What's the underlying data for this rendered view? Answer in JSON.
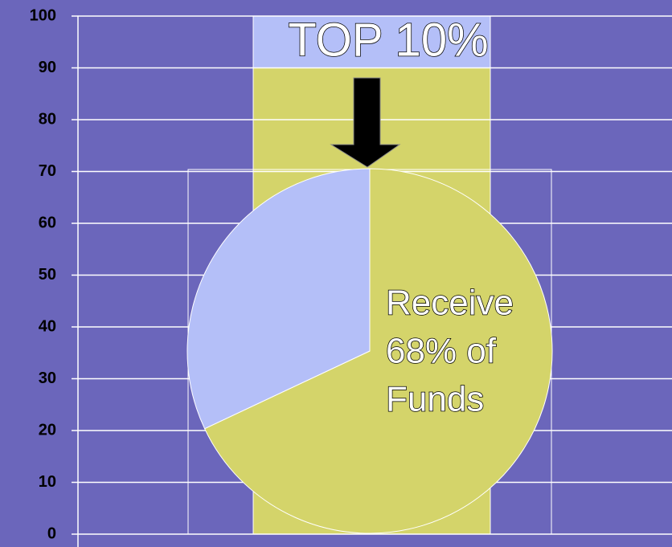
{
  "chart_data": [
    {
      "type": "bar",
      "stacked": true,
      "categories": [
        null
      ],
      "ylim": [
        0,
        100
      ],
      "yticks": [
        0,
        10,
        20,
        30,
        40,
        50,
        60,
        70,
        80,
        90,
        100
      ],
      "grid": true,
      "series": [
        {
          "color": "#d4d46a",
          "values": [
            90
          ]
        },
        {
          "color": "#b4bff8",
          "values": [
            10
          ]
        }
      ],
      "annotation": "TOP 10%"
    },
    {
      "type": "pie",
      "values": [
        68,
        32
      ],
      "colors": [
        "#d4d46a",
        "#b4bff8"
      ],
      "annotation": [
        "Receive",
        "68% of",
        "Funds"
      ]
    }
  ]
}
